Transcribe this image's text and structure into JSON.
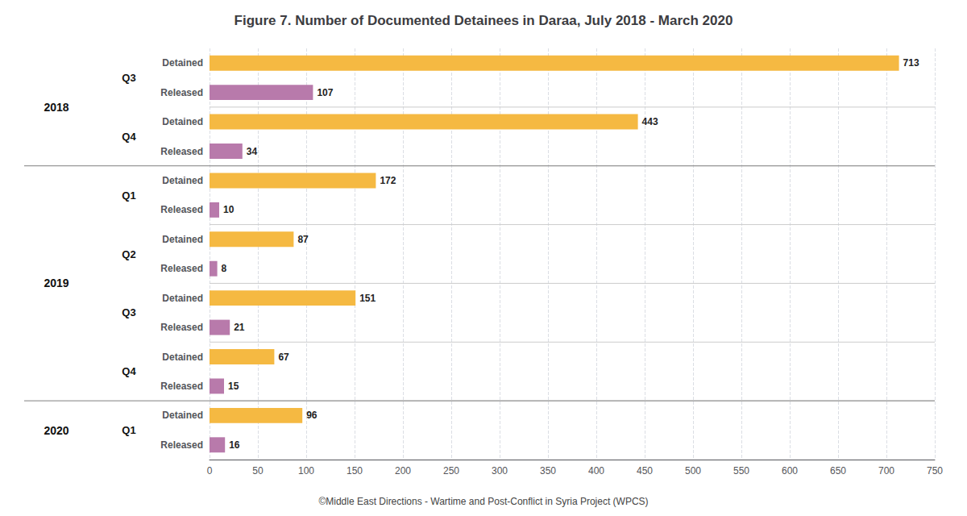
{
  "chart_data": {
    "type": "bar",
    "orientation": "horizontal",
    "title": "Figure 7. Number of Documented Detainees in Daraa, July 2018 - March 2020",
    "annotations": [
      "©Middle East Directions - Wartime and Post-Conflict in Syria Project (WPCS)"
    ],
    "categories": [
      "Detained",
      "Released",
      "Detained",
      "Released",
      "Detained",
      "Released",
      "Detained",
      "Released",
      "Detained",
      "Released",
      "Detained",
      "Released",
      "Detained",
      "Released"
    ],
    "values": [
      713,
      107,
      443,
      34,
      172,
      10,
      87,
      8,
      151,
      21,
      67,
      15,
      96,
      16
    ],
    "colors": [
      "#f5b942",
      "#b87aab",
      "#f5b942",
      "#b87aab",
      "#f5b942",
      "#b87aab",
      "#f5b942",
      "#b87aab",
      "#f5b942",
      "#b87aab",
      "#f5b942",
      "#b87aab",
      "#f5b942",
      "#b87aab"
    ],
    "quarter_groups": [
      {
        "name": "Q3",
        "size": 2
      },
      {
        "name": "Q4",
        "size": 2
      },
      {
        "name": "Q1",
        "size": 2
      },
      {
        "name": "Q2",
        "size": 2
      },
      {
        "name": "Q3",
        "size": 2
      },
      {
        "name": "Q4",
        "size": 2
      },
      {
        "name": "Q1",
        "size": 2
      }
    ],
    "year_groups": [
      {
        "name": "2018",
        "size": 4
      },
      {
        "name": "2019",
        "size": 8
      },
      {
        "name": "2020",
        "size": 2
      }
    ],
    "xlim": [
      0,
      750
    ],
    "xticks": [
      0,
      50,
      100,
      150,
      200,
      250,
      300,
      350,
      400,
      450,
      500,
      550,
      600,
      650,
      700,
      750
    ],
    "grid": true,
    "data_labels": true
  }
}
